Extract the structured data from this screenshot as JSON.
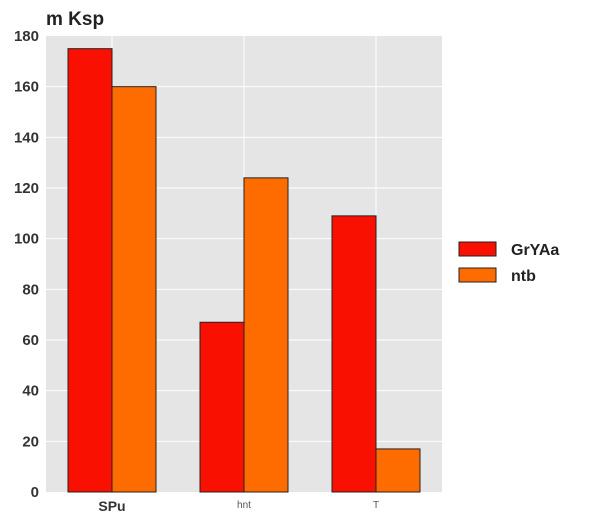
{
  "chart_data": {
    "type": "bar",
    "title": "m Ksp",
    "categories": [
      "SPu",
      "hnt",
      "T"
    ],
    "series": [
      {
        "name": "GrYAa",
        "color": "#fa1000",
        "values": [
          175,
          67,
          109
        ]
      },
      {
        "name": "ntb",
        "color": "#fe6c00",
        "values": [
          160,
          124,
          17
        ]
      }
    ],
    "ylim": [
      0,
      180
    ],
    "yticks": [
      "0",
      "20",
      "40",
      "60",
      "80",
      "100",
      "120",
      "140",
      "160",
      "180"
    ],
    "grid": true,
    "plot_background": "#e5e5e5",
    "legend_position": "right"
  }
}
